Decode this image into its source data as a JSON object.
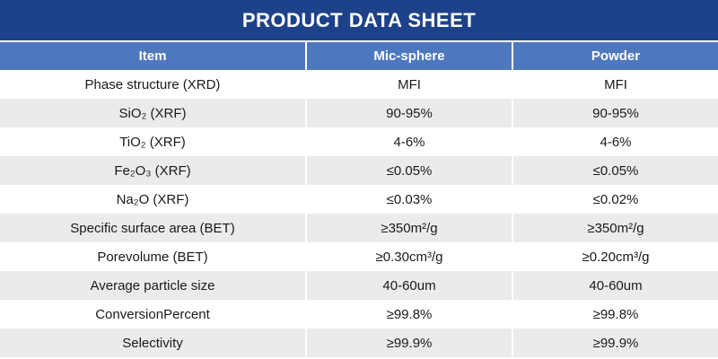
{
  "title": "PRODUCT DATA SHEET",
  "table": {
    "columns": [
      {
        "key": "item",
        "label": "Item"
      },
      {
        "key": "mic_sphere",
        "label": "Mic-sphere"
      },
      {
        "key": "powder",
        "label": "Powder"
      }
    ],
    "rows": [
      {
        "item": "Phase structure (XRD)",
        "mic_sphere": "MFI",
        "powder": "MFI"
      },
      {
        "item": "SiO₂ (XRF)",
        "mic_sphere": "90-95%",
        "powder": "90-95%"
      },
      {
        "item": "TiO₂ (XRF)",
        "mic_sphere": "4-6%",
        "powder": "4-6%"
      },
      {
        "item": "Fe₂O₃ (XRF)",
        "mic_sphere": "≤0.05%",
        "powder": "≤0.05%"
      },
      {
        "item": "Na₂O (XRF)",
        "mic_sphere": "≤0.03%",
        "powder": "≤0.02%"
      },
      {
        "item": "Specific surface area (BET)",
        "mic_sphere": "≥350m²/g",
        "powder": "≥350m²/g"
      },
      {
        "item": "Porevolume (BET)",
        "mic_sphere": "≥0.30cm³/g",
        "powder": "≥0.20cm³/g"
      },
      {
        "item": "Average particle size",
        "mic_sphere": "40-60um",
        "powder": "40-60um"
      },
      {
        "item": "ConversionPercent",
        "mic_sphere": "≥99.8%",
        "powder": "≥99.8%"
      },
      {
        "item": "Selectivity",
        "mic_sphere": "≥99.9%",
        "powder": "≥99.9%"
      }
    ]
  },
  "colors": {
    "banner": "#1E4289",
    "header_row": "#4E78BE",
    "stripe": "#EBEBEB",
    "text": "#1A1A1A",
    "header_text": "#FFFFFF"
  }
}
